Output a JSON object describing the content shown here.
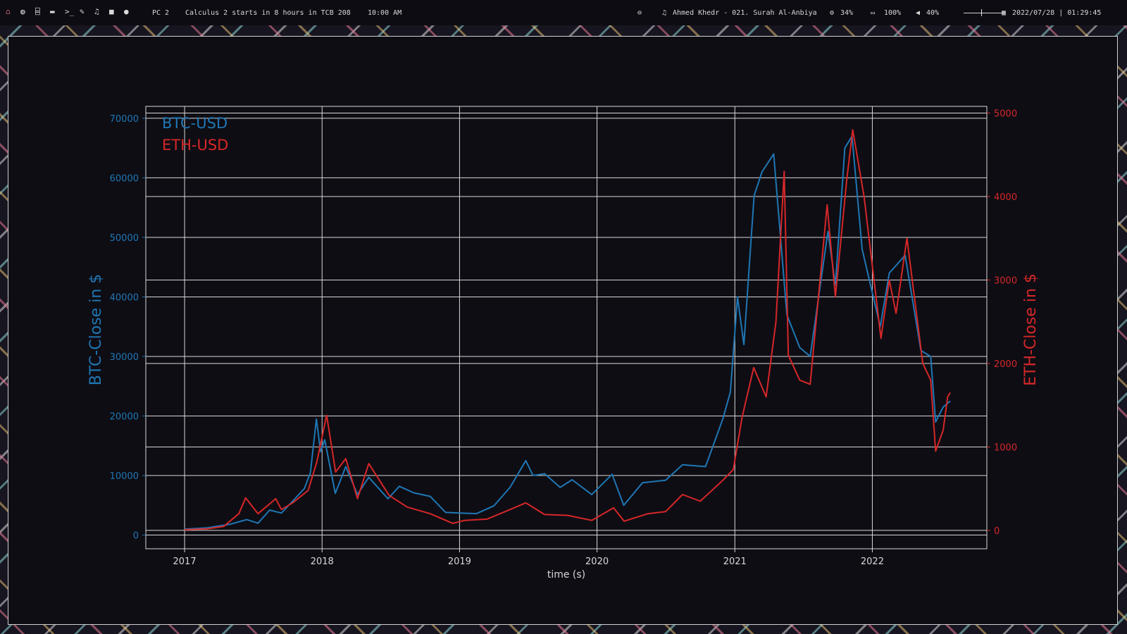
{
  "topbar": {
    "launchers": [
      {
        "icon": "home-icon",
        "glyph": "⌂",
        "color": "#e06a7a"
      },
      {
        "icon": "globe-icon",
        "glyph": "◍",
        "color": "#d8d8d8"
      },
      {
        "icon": "bank-icon",
        "glyph": "⌸",
        "color": "#d8d8d8"
      },
      {
        "icon": "folder-icon",
        "glyph": "▬",
        "color": "#d8d8d8"
      },
      {
        "icon": "terminal-icon",
        "glyph": ">_",
        "color": "#d8d8d8"
      },
      {
        "icon": "edit-icon",
        "glyph": "✎",
        "color": "#d8d8d8"
      },
      {
        "icon": "music-icon",
        "glyph": "♫",
        "color": "#d8d8d8"
      },
      {
        "icon": "video-icon",
        "glyph": "■",
        "color": "#d8d8d8"
      },
      {
        "icon": "chat-icon",
        "glyph": "●",
        "color": "#d8d8d8"
      }
    ],
    "workspace": "PC 2",
    "event": "Calculus 2 starts in 8 hours in TCB 208",
    "event_time": "10:00 AM",
    "toggle_icon": "toggle-icon",
    "media_icon": "music-note-icon",
    "media": "Ahmed Khedr - 021. Surah Al-Anbiya",
    "cpu_icon": "cpu-icon",
    "cpu": "34%",
    "battery_icon": "battery-icon",
    "battery": "100%",
    "volume_icon": "volume-icon",
    "volume": "40%",
    "calendar_icon": "calendar-icon",
    "datetime": "2022/07/28 | 01:29:45"
  },
  "colors": {
    "btc": "#1f77b4",
    "eth": "#d62728",
    "grid": "#d8d8d8",
    "text": "#d8d8d8"
  },
  "chart_data": {
    "type": "line",
    "xlabel": "time (s)",
    "ylabel_left": "BTC-Close in $",
    "ylabel_right": "ETH-Close in $",
    "x_ticks": [
      "2017",
      "2018",
      "2019",
      "2020",
      "2021",
      "2022"
    ],
    "y_left_ticks": [
      0,
      10000,
      20000,
      30000,
      40000,
      50000,
      60000,
      70000
    ],
    "y_right_ticks": [
      0,
      1000,
      2000,
      3000,
      4000,
      5000
    ],
    "ylim_left": [
      -2300,
      72000
    ],
    "ylim_right": [
      -220,
      5080
    ],
    "xlim": [
      "2016-09-20",
      "2022-11-01"
    ],
    "grid": true,
    "legend_position": "top-left",
    "series": [
      {
        "name": "BTC-USD",
        "axis": "left",
        "points": [
          [
            "2017-01-01",
            1000
          ],
          [
            "2017-03-01",
            1200
          ],
          [
            "2017-05-01",
            1800
          ],
          [
            "2017-06-15",
            2600
          ],
          [
            "2017-07-15",
            2000
          ],
          [
            "2017-08-15",
            4200
          ],
          [
            "2017-09-15",
            3700
          ],
          [
            "2017-10-15",
            5700
          ],
          [
            "2017-11-15",
            7800
          ],
          [
            "2017-12-01",
            10500
          ],
          [
            "2017-12-17",
            19500
          ],
          [
            "2017-12-28",
            14000
          ],
          [
            "2018-01-08",
            16000
          ],
          [
            "2018-02-05",
            7000
          ],
          [
            "2018-03-05",
            11500
          ],
          [
            "2018-04-05",
            6800
          ],
          [
            "2018-05-05",
            9700
          ],
          [
            "2018-06-25",
            6100
          ],
          [
            "2018-07-25",
            8200
          ],
          [
            "2018-09-01",
            7100
          ],
          [
            "2018-10-15",
            6500
          ],
          [
            "2018-11-25",
            3800
          ],
          [
            "2018-12-31",
            3700
          ],
          [
            "2019-02-15",
            3600
          ],
          [
            "2019-04-02",
            4900
          ],
          [
            "2019-05-15",
            8000
          ],
          [
            "2019-06-26",
            12500
          ],
          [
            "2019-07-15",
            10000
          ],
          [
            "2019-08-15",
            10300
          ],
          [
            "2019-09-25",
            8000
          ],
          [
            "2019-10-27",
            9300
          ],
          [
            "2019-12-18",
            6800
          ],
          [
            "2020-02-10",
            10200
          ],
          [
            "2020-03-12",
            5000
          ],
          [
            "2020-05-01",
            8800
          ],
          [
            "2020-07-01",
            9200
          ],
          [
            "2020-08-15",
            11800
          ],
          [
            "2020-10-15",
            11500
          ],
          [
            "2020-11-30",
            19500
          ],
          [
            "2020-12-20",
            24000
          ],
          [
            "2021-01-08",
            40000
          ],
          [
            "2021-01-25",
            32000
          ],
          [
            "2021-02-21",
            57000
          ],
          [
            "2021-03-14",
            61000
          ],
          [
            "2021-04-14",
            64000
          ],
          [
            "2021-05-19",
            37000
          ],
          [
            "2021-06-22",
            31500
          ],
          [
            "2021-07-20",
            30000
          ],
          [
            "2021-09-05",
            51000
          ],
          [
            "2021-09-25",
            42000
          ],
          [
            "2021-10-20",
            65000
          ],
          [
            "2021-11-08",
            67000
          ],
          [
            "2021-12-05",
            48000
          ],
          [
            "2022-01-22",
            35000
          ],
          [
            "2022-02-15",
            44000
          ],
          [
            "2022-03-29",
            47000
          ],
          [
            "2022-05-10",
            31000
          ],
          [
            "2022-06-05",
            30000
          ],
          [
            "2022-06-18",
            19000
          ],
          [
            "2022-07-08",
            21500
          ],
          [
            "2022-07-27",
            22500
          ]
        ]
      },
      {
        "name": "ETH-USD",
        "axis": "right",
        "points": [
          [
            "2017-01-01",
            8
          ],
          [
            "2017-03-01",
            18
          ],
          [
            "2017-04-15",
            48
          ],
          [
            "2017-05-25",
            200
          ],
          [
            "2017-06-12",
            390
          ],
          [
            "2017-07-15",
            200
          ],
          [
            "2017-08-31",
            380
          ],
          [
            "2017-09-15",
            250
          ],
          [
            "2017-10-15",
            330
          ],
          [
            "2017-11-25",
            480
          ],
          [
            "2017-12-18",
            820
          ],
          [
            "2018-01-13",
            1380
          ],
          [
            "2018-02-06",
            700
          ],
          [
            "2018-03-05",
            860
          ],
          [
            "2018-04-05",
            380
          ],
          [
            "2018-05-05",
            800
          ],
          [
            "2018-06-28",
            420
          ],
          [
            "2018-08-15",
            280
          ],
          [
            "2018-10-15",
            200
          ],
          [
            "2018-12-14",
            85
          ],
          [
            "2019-01-15",
            120
          ],
          [
            "2019-03-15",
            135
          ],
          [
            "2019-05-15",
            250
          ],
          [
            "2019-06-26",
            330
          ],
          [
            "2019-08-15",
            190
          ],
          [
            "2019-10-15",
            180
          ],
          [
            "2019-12-18",
            120
          ],
          [
            "2020-02-14",
            270
          ],
          [
            "2020-03-13",
            110
          ],
          [
            "2020-05-15",
            200
          ],
          [
            "2020-07-01",
            225
          ],
          [
            "2020-08-15",
            430
          ],
          [
            "2020-10-01",
            350
          ],
          [
            "2020-11-30",
            600
          ],
          [
            "2020-12-28",
            730
          ],
          [
            "2021-01-20",
            1350
          ],
          [
            "2021-02-20",
            1950
          ],
          [
            "2021-03-25",
            1600
          ],
          [
            "2021-04-20",
            2500
          ],
          [
            "2021-05-12",
            4300
          ],
          [
            "2021-05-23",
            2100
          ],
          [
            "2021-06-22",
            1800
          ],
          [
            "2021-07-20",
            1750
          ],
          [
            "2021-09-03",
            3900
          ],
          [
            "2021-09-25",
            2800
          ],
          [
            "2021-10-25",
            4200
          ],
          [
            "2021-11-10",
            4800
          ],
          [
            "2021-12-10",
            4000
          ],
          [
            "2022-01-24",
            2300
          ],
          [
            "2022-02-15",
            3000
          ],
          [
            "2022-03-05",
            2600
          ],
          [
            "2022-04-03",
            3500
          ],
          [
            "2022-05-15",
            2000
          ],
          [
            "2022-06-05",
            1800
          ],
          [
            "2022-06-18",
            950
          ],
          [
            "2022-07-08",
            1200
          ],
          [
            "2022-07-20",
            1600
          ],
          [
            "2022-07-27",
            1650
          ]
        ]
      }
    ]
  }
}
